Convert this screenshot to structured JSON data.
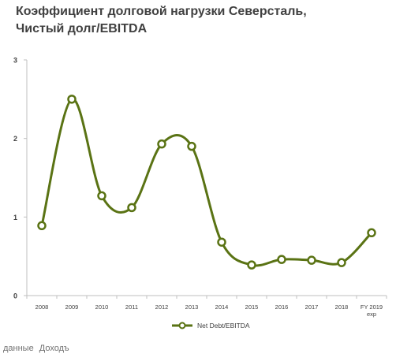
{
  "chart_data": {
    "type": "line",
    "title_line1": "Коэффициент долговой  нагрузки  Северсталь,",
    "title_line2": "Чистый долг/EBITDA",
    "categories": [
      "2008",
      "2009",
      "2010",
      "2011",
      "2012",
      "2013",
      "2014",
      "2015",
      "2016",
      "2017",
      "2018",
      "FY 2019 exp"
    ],
    "series": [
      {
        "name": "Net Debt/EBITDA",
        "values": [
          0.89,
          2.5,
          1.27,
          1.12,
          1.93,
          1.9,
          0.68,
          0.39,
          0.46,
          0.45,
          0.42,
          0.8
        ],
        "color": "#5a7314"
      }
    ],
    "yticks": [
      "0",
      "1",
      "2",
      "3"
    ],
    "ylim": [
      0,
      3
    ],
    "smooth": true,
    "grid": false,
    "legend_position": "bottom"
  },
  "footer": {
    "text1": "данные",
    "text2": "Доходъ"
  }
}
